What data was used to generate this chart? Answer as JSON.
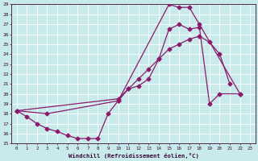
{
  "xlabel": "Windchill (Refroidissement éolien,°C)",
  "bg_color": "#c8eaea",
  "grid_color": "#b0d0d0",
  "line_color": "#8b1a6b",
  "xlim": [
    -0.5,
    23.5
  ],
  "ylim": [
    15,
    29
  ],
  "xticks": [
    0,
    1,
    2,
    3,
    4,
    5,
    6,
    7,
    8,
    9,
    10,
    11,
    12,
    13,
    14,
    15,
    16,
    17,
    18,
    19,
    20,
    21,
    22,
    23
  ],
  "yticks": [
    15,
    16,
    17,
    18,
    19,
    20,
    21,
    22,
    23,
    24,
    25,
    26,
    27,
    28,
    29
  ],
  "curve1_x": [
    0,
    1,
    2,
    3,
    4,
    5,
    6,
    7,
    8,
    9,
    10,
    11,
    12,
    13,
    14,
    15,
    16,
    17,
    18,
    19,
    20,
    22
  ],
  "curve1_y": [
    18.3,
    17.7,
    17.0,
    16.5,
    16.2,
    15.8,
    15.5,
    15.5,
    15.5,
    18.0,
    19.3,
    20.5,
    20.8,
    21.5,
    23.5,
    26.5,
    27.0,
    26.5,
    26.7,
    19.0,
    20.0,
    20.0
  ],
  "curve2_x": [
    0,
    10,
    11,
    12,
    13,
    14,
    15,
    16,
    17,
    18,
    19,
    20,
    21
  ],
  "curve2_y": [
    18.3,
    19.5,
    20.5,
    21.5,
    22.5,
    23.5,
    24.5,
    25.0,
    25.5,
    25.8,
    25.2,
    24.0,
    21.0
  ],
  "curve3_x": [
    0,
    3,
    10,
    15,
    16,
    17,
    18,
    22
  ],
  "curve3_y": [
    18.3,
    18.0,
    19.3,
    29.0,
    28.7,
    28.7,
    27.0,
    20.0
  ],
  "markersize": 2.5,
  "linewidth": 0.9
}
